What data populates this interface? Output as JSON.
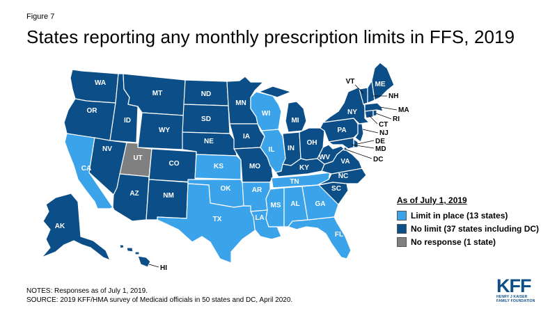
{
  "figure_label": "Figure 7",
  "title": "States reporting any monthly prescription limits in FFS, 2019",
  "colors": {
    "limit": "#3ba3ea",
    "no_limit": "#0c4e87",
    "no_response": "#808080",
    "border": "#ffffff"
  },
  "legend": {
    "title": "As of July 1, 2019",
    "items": [
      {
        "key": "limit",
        "label": "Limit in place (13 states)"
      },
      {
        "key": "no_limit",
        "label": "No limit (37 states including DC)"
      },
      {
        "key": "no_response",
        "label": "No response (1 state)"
      }
    ]
  },
  "states": {
    "WA": "no_limit",
    "OR": "no_limit",
    "CA": "limit",
    "ID": "no_limit",
    "NV": "no_limit",
    "MT": "no_limit",
    "WY": "no_limit",
    "UT": "no_response",
    "AZ": "no_limit",
    "CO": "no_limit",
    "NM": "no_limit",
    "ND": "no_limit",
    "SD": "no_limit",
    "NE": "no_limit",
    "KS": "limit",
    "OK": "limit",
    "TX": "limit",
    "MN": "no_limit",
    "IA": "no_limit",
    "MO": "no_limit",
    "AR": "limit",
    "LA": "limit",
    "WI": "limit",
    "IL": "limit",
    "MI": "no_limit",
    "IN": "no_limit",
    "OH": "no_limit",
    "KY": "no_limit",
    "TN": "limit",
    "MS": "limit",
    "AL": "limit",
    "GA": "limit",
    "FL": "limit",
    "SC": "no_limit",
    "NC": "no_limit",
    "VA": "no_limit",
    "WV": "no_limit",
    "PA": "no_limit",
    "NY": "no_limit",
    "NJ": "no_limit",
    "DE": "no_limit",
    "MD": "no_limit",
    "DC": "no_limit",
    "CT": "no_limit",
    "RI": "no_limit",
    "MA": "no_limit",
    "VT": "no_limit",
    "NH": "no_limit",
    "ME": "no_limit",
    "AK": "no_limit",
    "HI": "no_limit"
  },
  "state_labels": [
    "WA",
    "OR",
    "CA",
    "ID",
    "NV",
    "MT",
    "WY",
    "UT",
    "AZ",
    "CO",
    "NM",
    "ND",
    "SD",
    "NE",
    "KS",
    "OK",
    "TX",
    "MN",
    "IA",
    "MO",
    "AR",
    "LA",
    "WI",
    "IL",
    "MI",
    "IN",
    "OH",
    "KY",
    "TN",
    "MS",
    "AL",
    "GA",
    "FL",
    "SC",
    "NC",
    "VA",
    "WV",
    "PA",
    "NY",
    "ME",
    "AK",
    "HI",
    "VT",
    "NH",
    "MA",
    "RI",
    "CT",
    "NJ",
    "DE",
    "MD",
    "DC"
  ],
  "notes": [
    "NOTES: Responses as of July 1, 2019.",
    "SOURCE: 2019 KFF/HMA survey  of Medicaid officials in 50 states and DC, April 2020."
  ],
  "logo": {
    "main": "KFF",
    "sub_line1": "HENRY J KAISER",
    "sub_line2": "FAMILY FOUNDATION"
  }
}
